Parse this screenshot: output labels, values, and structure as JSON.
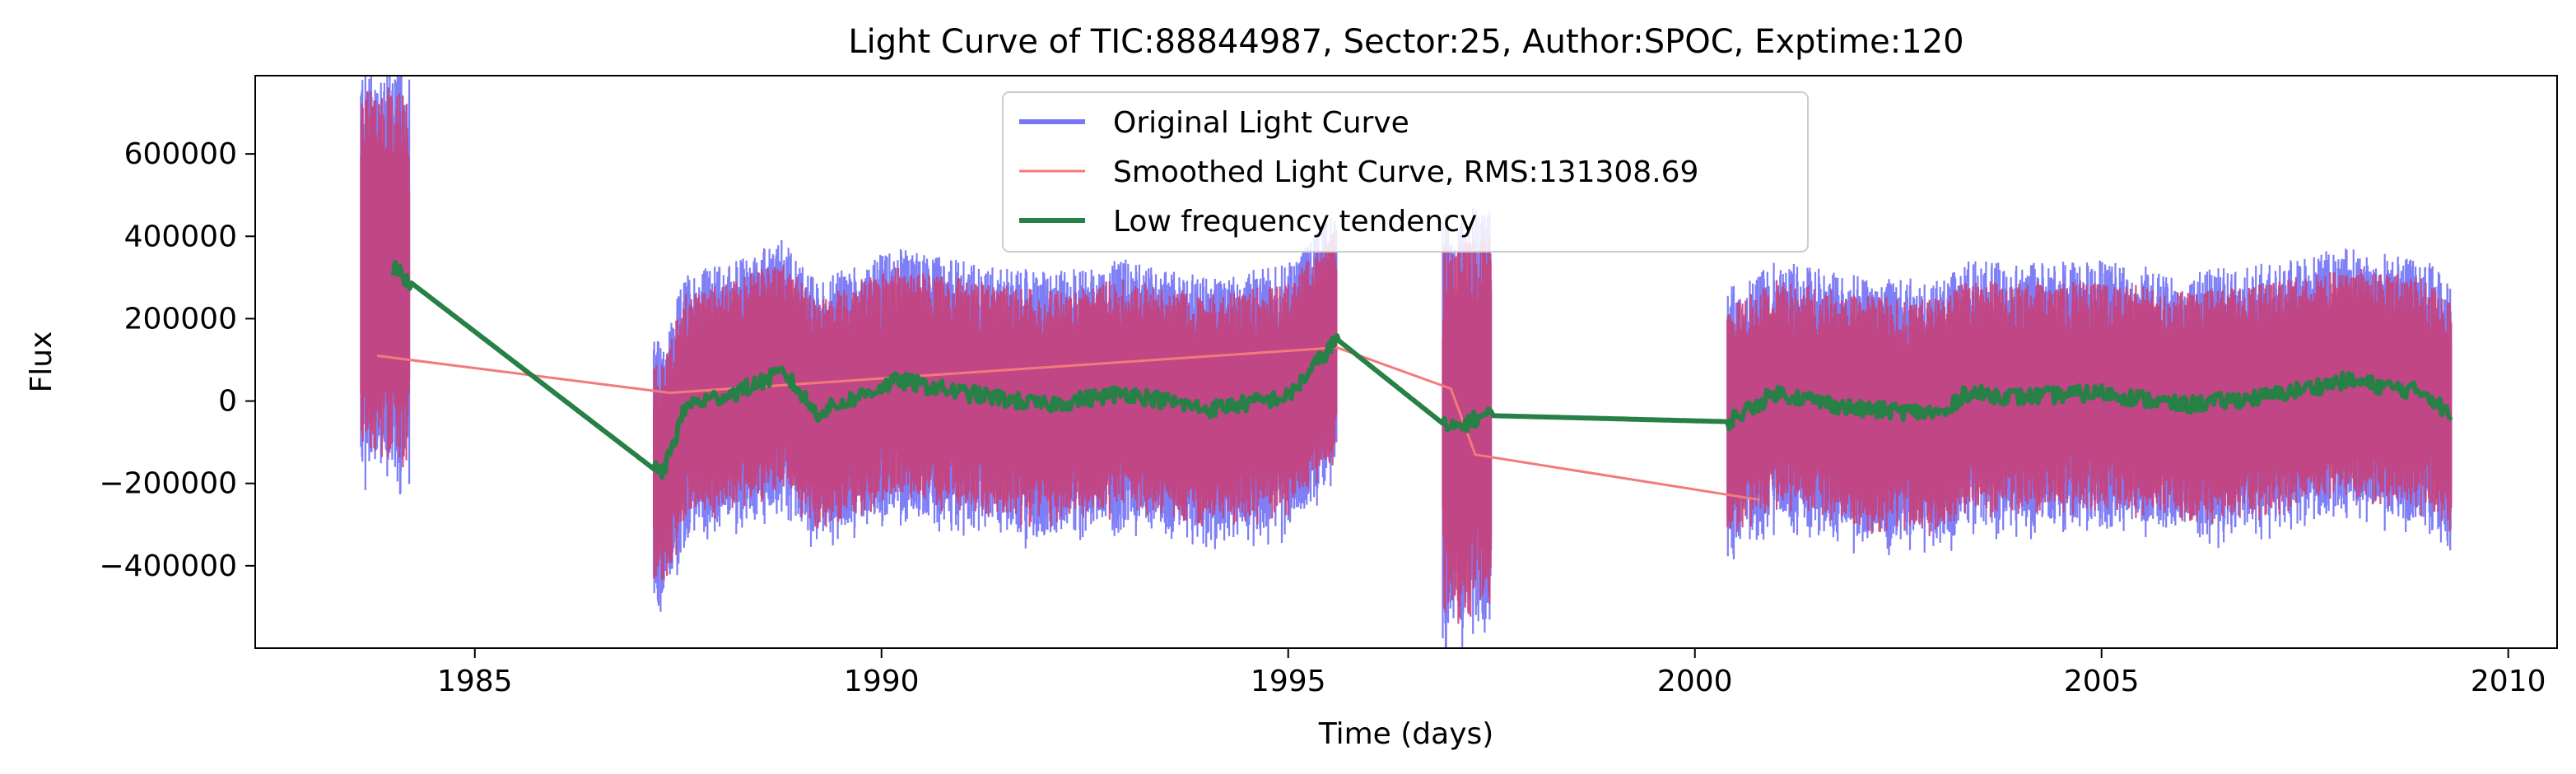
{
  "chart_data": {
    "type": "line",
    "title": "Light Curve of TIC:88844987, Sector:25, Author:SPOC, Exptime:120",
    "xlabel": "Time (days)",
    "ylabel": "Flux",
    "xlim": [
      1982.3,
      2010.6
    ],
    "ylim": [
      -600000,
      790000
    ],
    "x_ticks": [
      1985,
      1990,
      1995,
      2000,
      2005,
      2010
    ],
    "x_tick_labels": [
      "1985",
      "1990",
      "1995",
      "2000",
      "2005",
      "2010"
    ],
    "y_ticks": [
      -400000,
      -200000,
      0,
      200000,
      400000,
      600000
    ],
    "y_tick_labels": [
      "−400000",
      "−200000",
      "0",
      "200000",
      "400000",
      "600000"
    ],
    "grid": false,
    "legend_position": "top-center",
    "segments": [
      [
        1983.6,
        1984.2
      ],
      [
        1987.2,
        1995.6
      ],
      [
        1996.9,
        1997.5
      ],
      [
        2000.4,
        2009.3
      ]
    ],
    "series": [
      {
        "name": "Original Light Curve",
        "color": "#7777f5",
        "style": "noisy band",
        "approx_range": [
          -450000,
          450000
        ],
        "peak_values": [
          690000,
          530000,
          460000,
          480000
        ]
      },
      {
        "name": "Smoothed Light Curve, RMS:131308.69",
        "color": "#f47a7a",
        "style": "noisy band",
        "rms": 131308.69,
        "approx_range": [
          -420000,
          420000
        ],
        "bridge_points": [
          {
            "x": 1983.8,
            "y": 110000
          },
          {
            "x": 1987.4,
            "y": 20000
          },
          {
            "x": 1995.6,
            "y": 130000
          },
          {
            "x": 1997.0,
            "y": 30000
          },
          {
            "x": 1997.3,
            "y": -130000
          },
          {
            "x": 2000.8,
            "y": -240000
          }
        ]
      },
      {
        "name": "Low frequency tendency",
        "color": "#278046",
        "style": "trend line",
        "points": [
          {
            "x": 1984.0,
            "y": 320000
          },
          {
            "x": 1987.3,
            "y": -180000
          },
          {
            "x": 1987.6,
            "y": -10000
          },
          {
            "x": 1988.2,
            "y": 20000
          },
          {
            "x": 1988.8,
            "y": 70000
          },
          {
            "x": 1989.2,
            "y": -30000
          },
          {
            "x": 1989.7,
            "y": 10000
          },
          {
            "x": 1990.2,
            "y": 50000
          },
          {
            "x": 1991.0,
            "y": 20000
          },
          {
            "x": 1992.0,
            "y": -10000
          },
          {
            "x": 1993.0,
            "y": 20000
          },
          {
            "x": 1994.0,
            "y": -20000
          },
          {
            "x": 1995.0,
            "y": 10000
          },
          {
            "x": 1995.6,
            "y": 150000
          },
          {
            "x": 1997.0,
            "y": -70000
          },
          {
            "x": 1997.4,
            "y": -35000
          },
          {
            "x": 2000.4,
            "y": -50000
          },
          {
            "x": 2001.0,
            "y": 20000
          },
          {
            "x": 2002.0,
            "y": -20000
          },
          {
            "x": 2003.1,
            "y": -30000
          },
          {
            "x": 2003.3,
            "y": 20000
          },
          {
            "x": 2004.0,
            "y": 10000
          },
          {
            "x": 2005.0,
            "y": 20000
          },
          {
            "x": 2006.0,
            "y": -10000
          },
          {
            "x": 2007.0,
            "y": 10000
          },
          {
            "x": 2008.0,
            "y": 50000
          },
          {
            "x": 2009.0,
            "y": 20000
          },
          {
            "x": 2009.3,
            "y": -40000
          }
        ]
      }
    ]
  }
}
